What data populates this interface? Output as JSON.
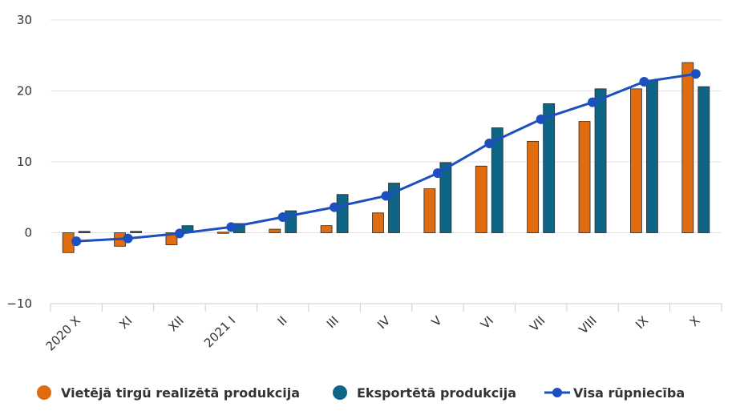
{
  "chart_data": {
    "type": "bar",
    "title": "",
    "xlabel": "",
    "ylabel": "",
    "ylim": [
      -10,
      30
    ],
    "yticks": [
      -10,
      0,
      10,
      20,
      30
    ],
    "grid": true,
    "legend_position": "bottom",
    "categories": [
      "2020 X",
      "XI",
      "XII",
      "2021 I",
      "II",
      "III",
      "IV",
      "V",
      "VI",
      "VII",
      "VIII",
      "IX",
      "X"
    ],
    "series": [
      {
        "name": "Vietējā tirgū realizētā produkcija",
        "kind": "bar",
        "color": "#e06c0f",
        "values": [
          -2.8,
          -1.9,
          -1.7,
          0.0,
          0.5,
          1.0,
          2.8,
          6.2,
          9.4,
          12.9,
          15.7,
          20.3,
          24.0
        ]
      },
      {
        "name": "Eksportētā produkcija",
        "kind": "bar",
        "color": "#0e6585",
        "values": [
          0.2,
          0.2,
          1.0,
          1.3,
          3.1,
          5.4,
          7.0,
          9.9,
          14.8,
          18.2,
          20.3,
          21.4,
          20.6
        ]
      },
      {
        "name": "Visa rūpniecība",
        "kind": "line",
        "color": "#1c4fbf",
        "values": [
          -1.2,
          -0.8,
          -0.1,
          0.8,
          2.2,
          3.6,
          5.2,
          8.4,
          12.6,
          16.0,
          18.4,
          21.3,
          22.4
        ]
      }
    ]
  }
}
